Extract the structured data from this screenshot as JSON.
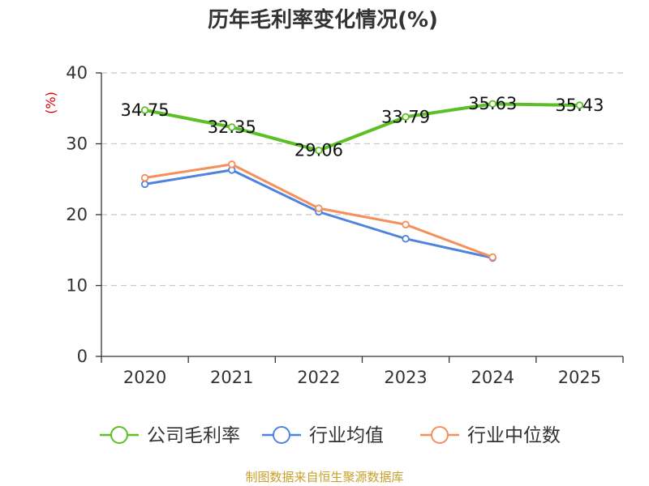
{
  "chart_data": {
    "type": "line",
    "title": "历年毛利率变化情况(%)",
    "ylabel": "(%)",
    "xlabel": "",
    "categories": [
      "2020",
      "2021",
      "2022",
      "2023",
      "2024",
      "2025"
    ],
    "ylim": [
      0,
      40
    ],
    "yticks": [
      0,
      10,
      20,
      30,
      40
    ],
    "grid": true,
    "legend_position": "bottom",
    "series": [
      {
        "name": "公司毛利率",
        "color": "#5cbf25",
        "values": [
          34.75,
          32.35,
          29.06,
          33.79,
          35.63,
          35.43
        ],
        "show_labels": true
      },
      {
        "name": "行业均值",
        "color": "#4f83dc",
        "values": [
          24.3,
          26.3,
          20.4,
          16.6,
          13.9,
          null
        ],
        "show_labels": false
      },
      {
        "name": "行业中位数",
        "color": "#f5905b",
        "values": [
          25.2,
          27.1,
          20.9,
          18.6,
          14.0,
          null
        ],
        "show_labels": false
      }
    ],
    "ylabel_color": "#d90000",
    "axis_color": "#333333",
    "grid_color": "#c8c8c8"
  },
  "source": {
    "text": "制图数据来自恒生聚源数据库",
    "color": "#c8a02a"
  }
}
